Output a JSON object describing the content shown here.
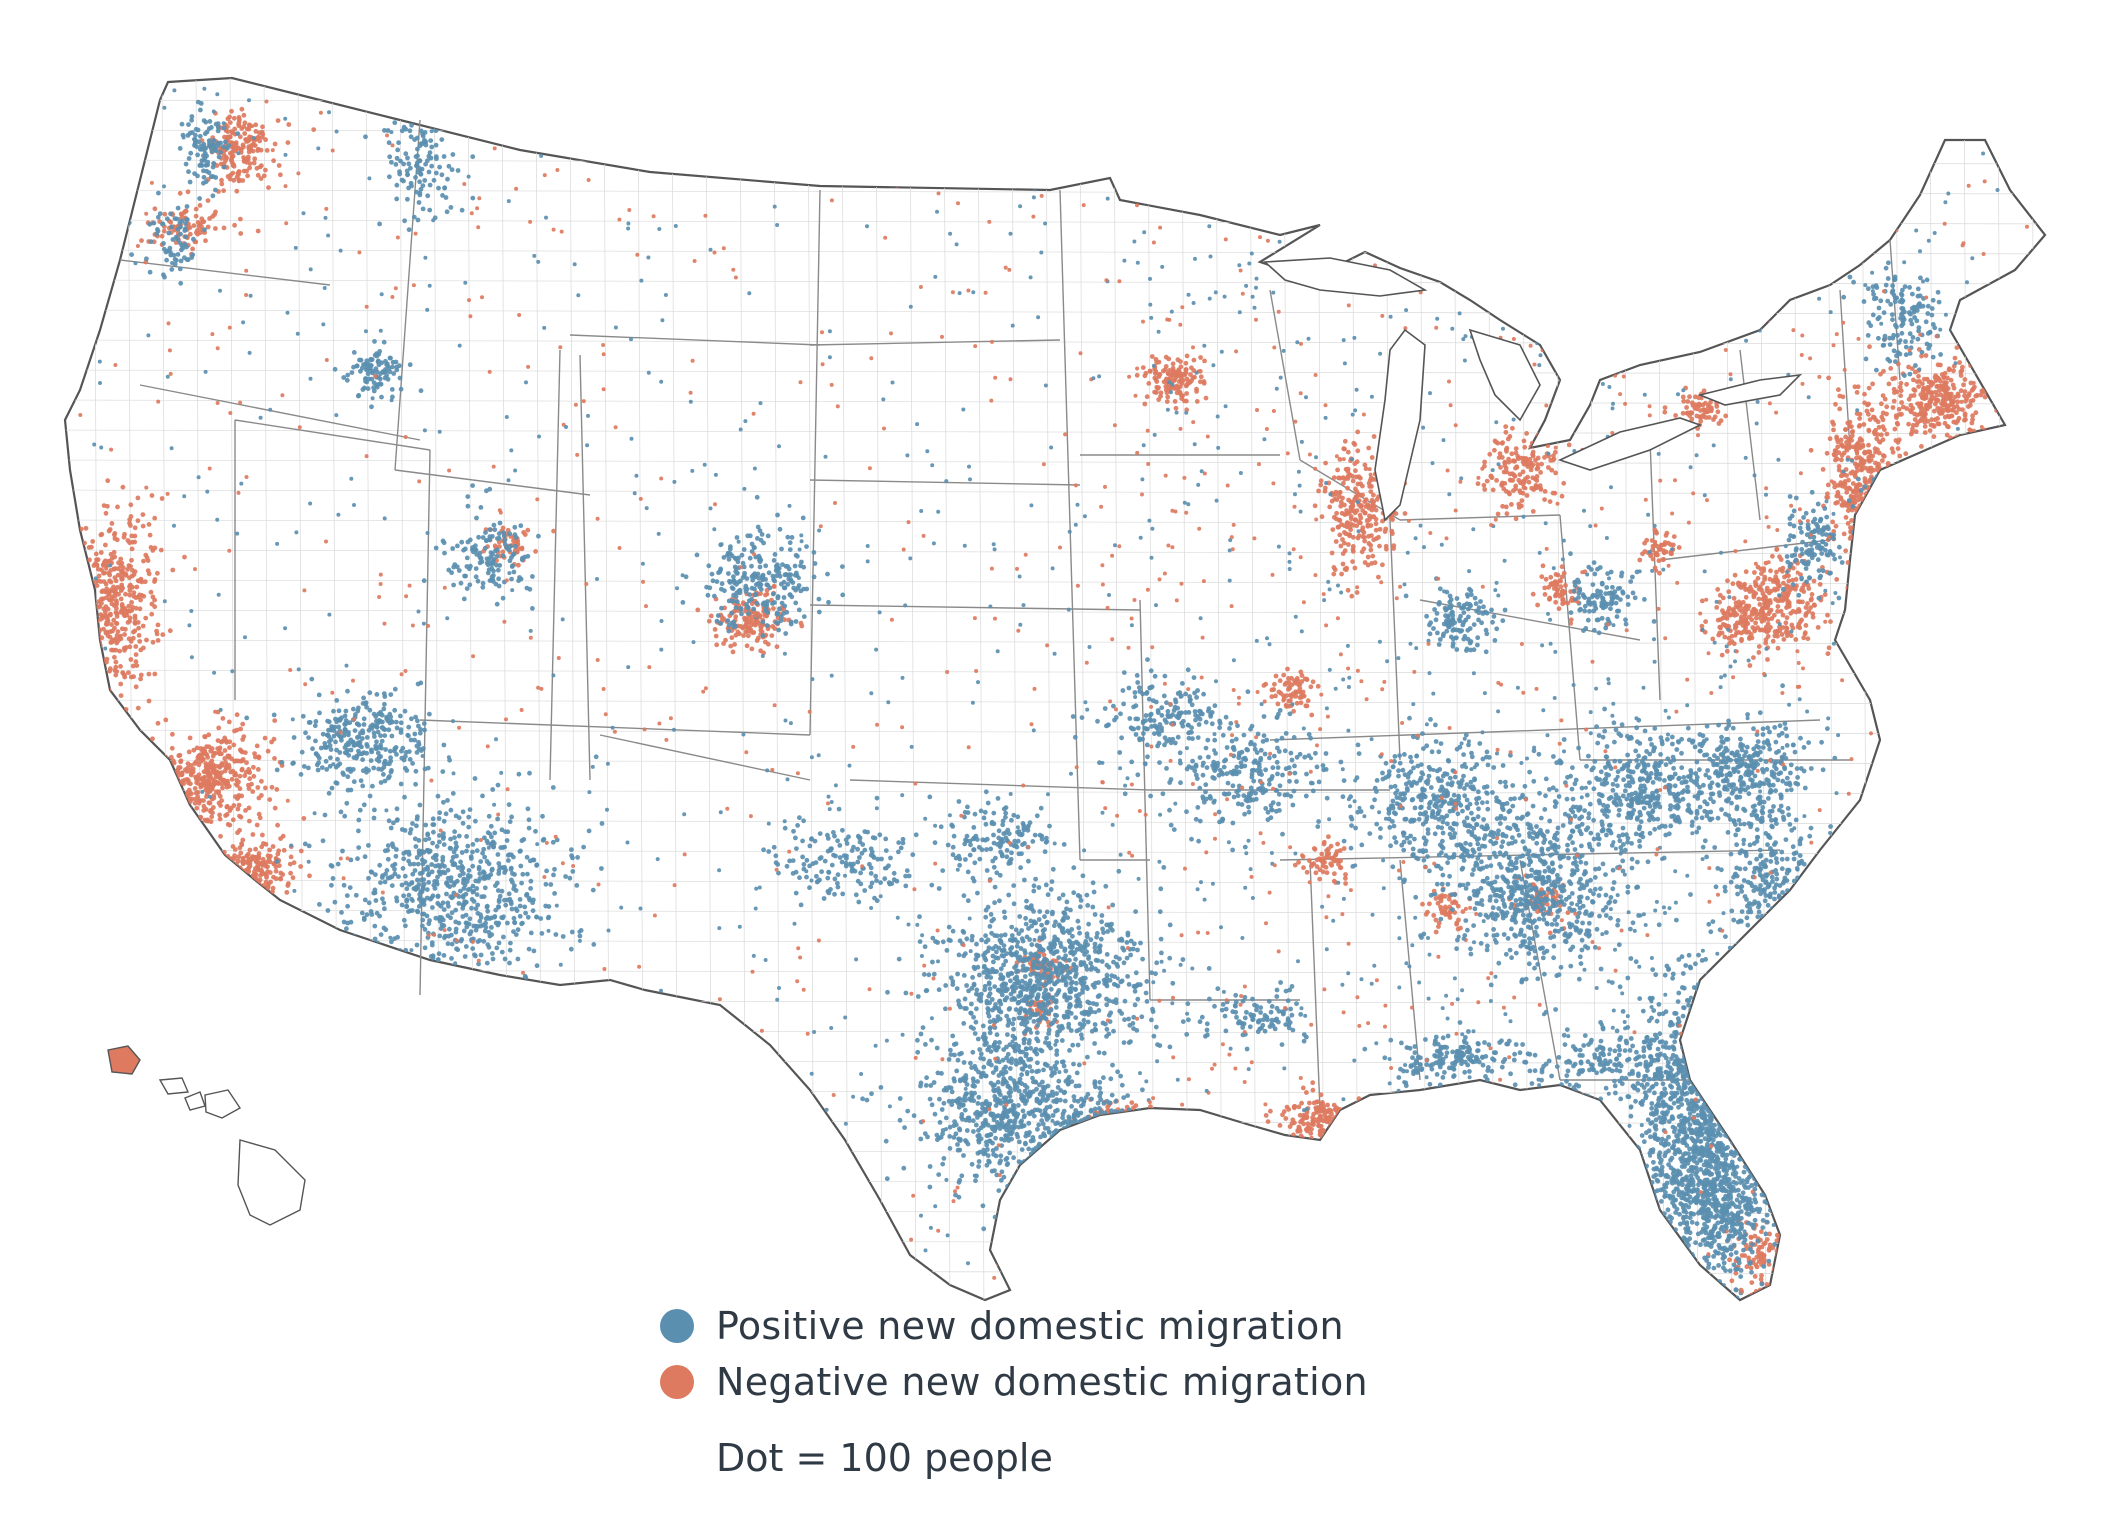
{
  "legend": {
    "items": [
      {
        "label": "Positive new domestic migration",
        "color": "#5b8fb0"
      },
      {
        "label": "Negative new domestic migration",
        "color": "#dd7a5f"
      }
    ],
    "note": "Dot = 100 people"
  },
  "map": {
    "land_fill": "#ffffff",
    "border_color": "#6b6b6b",
    "county_line_color": "#d9d9d9",
    "positive_clusters": [
      "dallas-fort-worth",
      "austin-san-antonio",
      "houston-suburbs",
      "phoenix",
      "las-vegas",
      "boise",
      "salt-lake-city",
      "denver-suburbs",
      "florida-peninsula",
      "atlanta",
      "nashville",
      "charlotte",
      "raleigh-durham",
      "tampa-orlando",
      "jacksonville",
      "carolina-coast",
      "indianapolis",
      "columbus",
      "seattle-suburbs",
      "portland-suburbs",
      "northern-rockies",
      "maine-coast",
      "delmarva"
    ],
    "negative_clusters": [
      "seattle",
      "portland",
      "san-francisco-bay",
      "los-angeles",
      "san-diego",
      "chicago",
      "detroit",
      "new-york",
      "boston",
      "philadelphia",
      "washington-dc",
      "minneapolis",
      "denver",
      "miami",
      "new-orleans",
      "houston-core",
      "dallas-core",
      "st-louis",
      "memphis",
      "atlanta-core",
      "honolulu",
      "rust-belt-cities"
    ]
  }
}
